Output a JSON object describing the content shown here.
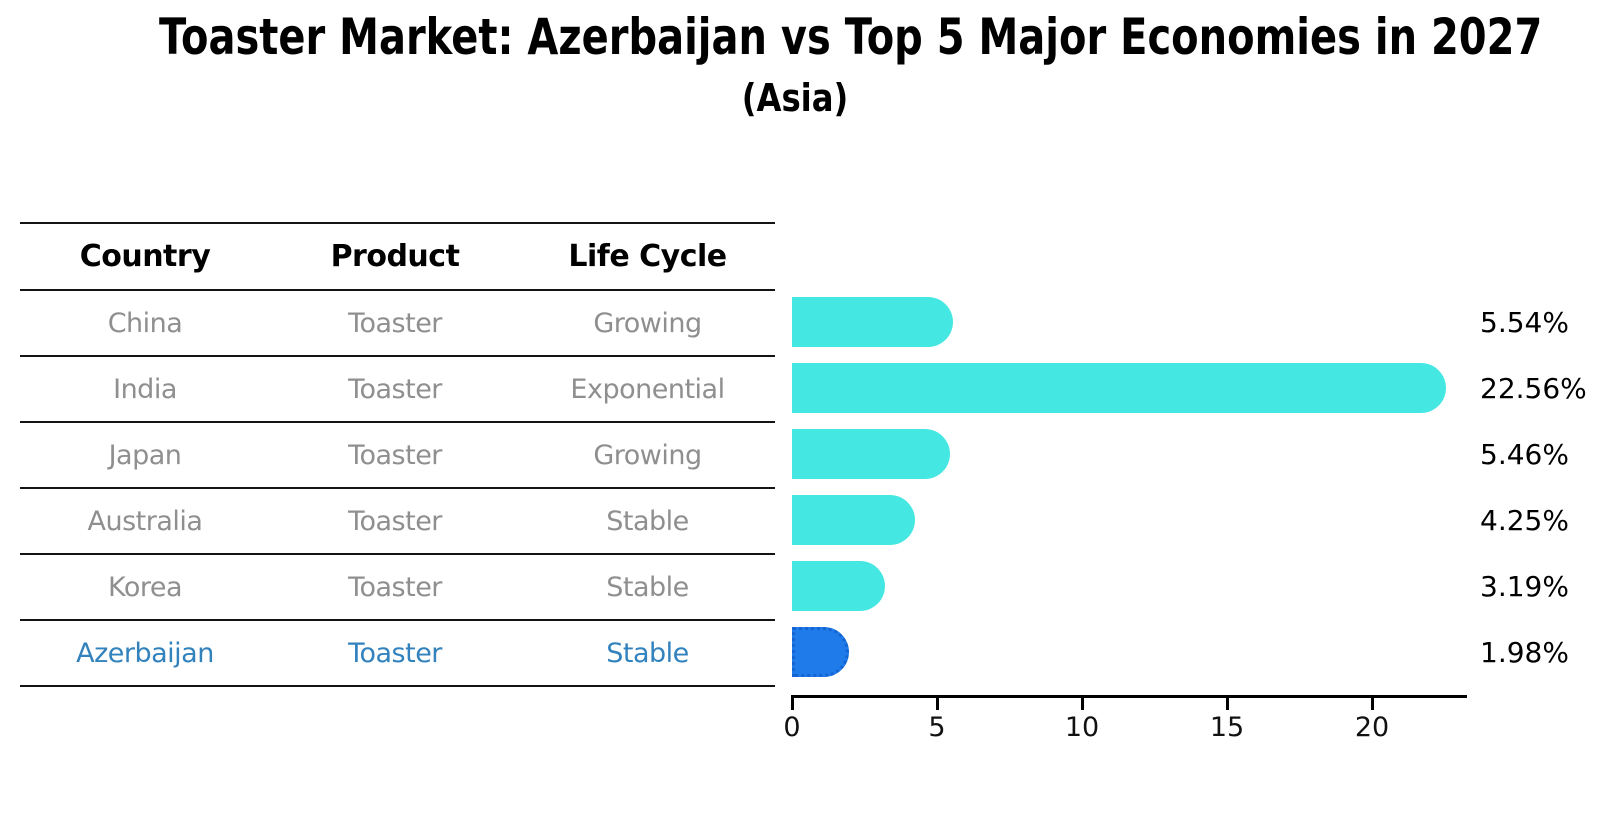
{
  "title": "Toaster Market: Azerbaijan vs Top 5 Major Economies in 2027",
  "subtitle": "(Asia)",
  "table": {
    "headers": {
      "country": "Country",
      "product": "Product",
      "life_cycle": "Life Cycle"
    },
    "rows": [
      {
        "country": "China",
        "product": "Toaster",
        "life_cycle": "Growing"
      },
      {
        "country": "India",
        "product": "Toaster",
        "life_cycle": "Exponential"
      },
      {
        "country": "Japan",
        "product": "Toaster",
        "life_cycle": "Growing"
      },
      {
        "country": "Australia",
        "product": "Toaster",
        "life_cycle": "Stable"
      },
      {
        "country": "Korea",
        "product": "Toaster",
        "life_cycle": "Stable"
      },
      {
        "country": "Azerbaijan",
        "product": "Toaster",
        "life_cycle": "Stable"
      }
    ],
    "highlight_row_index": 5
  },
  "chart_data": {
    "type": "bar",
    "orientation": "horizontal",
    "title": "Toaster Market: Azerbaijan vs Top 5 Major Economies in 2027",
    "subtitle": "(Asia)",
    "categories": [
      "China",
      "India",
      "Japan",
      "Australia",
      "Korea",
      "Azerbaijan"
    ],
    "values": [
      5.54,
      22.56,
      5.46,
      4.25,
      3.19,
      1.98
    ],
    "value_labels": [
      "5.54%",
      "22.56%",
      "5.46%",
      "4.25%",
      "3.19%",
      "1.98%"
    ],
    "x_ticks": [
      "0",
      "5",
      "10",
      "15",
      "20"
    ],
    "x_tick_values": [
      0,
      5,
      10,
      15,
      20
    ],
    "xlim": [
      0,
      23.2
    ],
    "grid": false,
    "legend": false,
    "bar_color": "#45E7E3",
    "highlight_bar_color": "#1E7BE9",
    "highlight_border_color": "#1464D2",
    "highlight_index": 5
  },
  "colors": {
    "background": "#FFFFFF",
    "table_text": "#8F8F8F",
    "highlight_text": "#3182BD",
    "header_text": "#000000",
    "table_line": "#141414",
    "axis": "#000000"
  }
}
